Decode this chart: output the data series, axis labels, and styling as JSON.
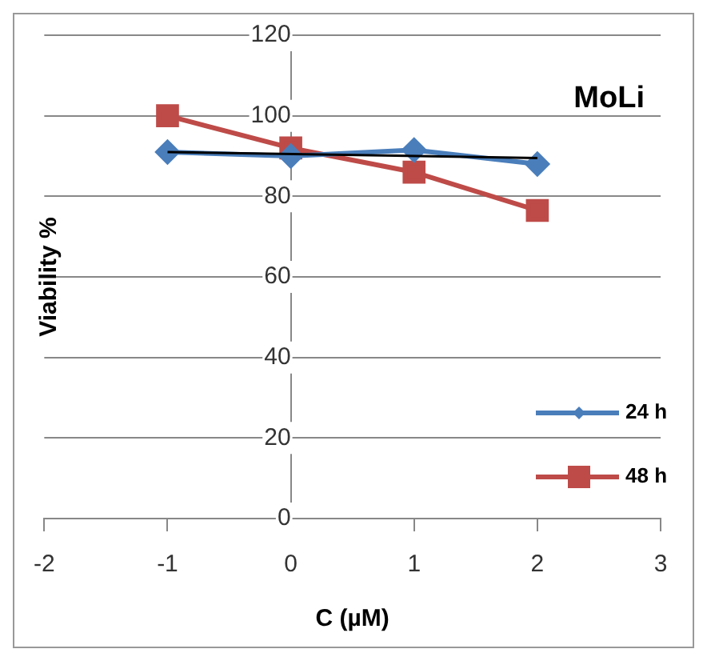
{
  "chart_data": {
    "type": "line",
    "title": "MoLi",
    "xlabel": "C (µM)",
    "ylabel": "Viability %",
    "x": [
      -1,
      0,
      1,
      2
    ],
    "series": [
      {
        "name": "24 h",
        "color": "#4a7ebb",
        "values": [
          91,
          90,
          91.5,
          88
        ],
        "marker": "diamond"
      },
      {
        "name": "48 h",
        "color": "#be4b48",
        "values": [
          100,
          92,
          86,
          76.5
        ],
        "marker": "square"
      },
      {
        "type": "line",
        "color": "#000000",
        "x": [
          -1,
          2
        ],
        "values": [
          91,
          89.5
        ],
        "marker": "none"
      }
    ],
    "xlim": [
      -2,
      3
    ],
    "xticks": [
      -2,
      -1,
      0,
      1,
      2,
      3
    ],
    "ylim": [
      0,
      120
    ],
    "yticks": [
      0,
      20,
      40,
      60,
      80,
      100,
      120
    ],
    "grid": "y",
    "legend": "bottom right",
    "line_style": "solid"
  }
}
